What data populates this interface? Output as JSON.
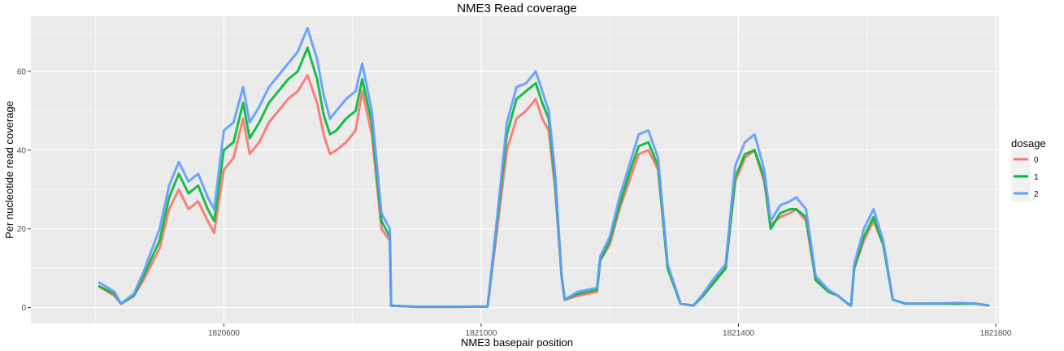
{
  "chart_data": {
    "type": "line",
    "title": "NME3 Read coverage",
    "xlabel": "NME3 basepair position",
    "ylabel": "Per nucleotide read coverage",
    "xlim": [
      1820300,
      1821805
    ],
    "ylim": [
      -4,
      74
    ],
    "x_ticks": [
      1820600,
      1821000,
      1821400,
      1821800
    ],
    "y_ticks": [
      0,
      20,
      40,
      60
    ],
    "grid": true,
    "legend": {
      "title": "dosage",
      "position": "right"
    },
    "colors": {
      "0": "#f8766d",
      "1": "#00ba38",
      "2": "#619cff",
      "panel": "#ebebeb",
      "grid": "#ffffff"
    },
    "series": [
      {
        "name": "0",
        "color": "#f8766d",
        "points": [
          [
            1820405,
            5.5
          ],
          [
            1820430,
            3
          ],
          [
            1820440,
            1
          ],
          [
            1820460,
            3
          ],
          [
            1820475,
            7
          ],
          [
            1820500,
            15
          ],
          [
            1820515,
            25
          ],
          [
            1820530,
            30
          ],
          [
            1820545,
            25
          ],
          [
            1820560,
            27
          ],
          [
            1820575,
            22
          ],
          [
            1820585,
            19
          ],
          [
            1820600,
            35
          ],
          [
            1820615,
            38
          ],
          [
            1820630,
            48
          ],
          [
            1820640,
            39
          ],
          [
            1820655,
            42
          ],
          [
            1820670,
            47
          ],
          [
            1820685,
            50
          ],
          [
            1820700,
            53
          ],
          [
            1820715,
            55
          ],
          [
            1820730,
            59
          ],
          [
            1820745,
            52
          ],
          [
            1820755,
            44
          ],
          [
            1820765,
            39
          ],
          [
            1820775,
            40
          ],
          [
            1820790,
            42
          ],
          [
            1820805,
            45
          ],
          [
            1820815,
            55
          ],
          [
            1820830,
            44
          ],
          [
            1820845,
            20
          ],
          [
            1820858,
            17
          ],
          [
            1820860,
            0.5
          ],
          [
            1820900,
            0.2
          ],
          [
            1820960,
            0.2
          ],
          [
            1821010,
            0.3
          ],
          [
            1821025,
            20
          ],
          [
            1821040,
            40
          ],
          [
            1821055,
            48
          ],
          [
            1821070,
            50
          ],
          [
            1821085,
            53
          ],
          [
            1821095,
            48
          ],
          [
            1821105,
            45
          ],
          [
            1821115,
            30
          ],
          [
            1821125,
            8
          ],
          [
            1821130,
            2
          ],
          [
            1821150,
            3
          ],
          [
            1821180,
            4
          ],
          [
            1821185,
            12
          ],
          [
            1821200,
            16
          ],
          [
            1821215,
            25
          ],
          [
            1821230,
            32
          ],
          [
            1821245,
            39
          ],
          [
            1821260,
            40
          ],
          [
            1821275,
            35
          ],
          [
            1821290,
            10
          ],
          [
            1821310,
            1
          ],
          [
            1821330,
            0.5
          ],
          [
            1821345,
            3
          ],
          [
            1821360,
            6
          ],
          [
            1821380,
            10
          ],
          [
            1821395,
            32
          ],
          [
            1821410,
            38
          ],
          [
            1821425,
            40
          ],
          [
            1821440,
            32
          ],
          [
            1821450,
            21
          ],
          [
            1821465,
            23
          ],
          [
            1821480,
            24
          ],
          [
            1821490,
            25
          ],
          [
            1821505,
            22
          ],
          [
            1821520,
            7
          ],
          [
            1821540,
            4
          ],
          [
            1821555,
            3
          ],
          [
            1821570,
            1
          ],
          [
            1821575,
            0.5
          ],
          [
            1821580,
            10
          ],
          [
            1821595,
            17
          ],
          [
            1821610,
            22
          ],
          [
            1821625,
            16
          ],
          [
            1821640,
            2
          ],
          [
            1821660,
            1
          ],
          [
            1821700,
            1
          ],
          [
            1821740,
            1
          ],
          [
            1821770,
            1
          ],
          [
            1821790,
            0.5
          ]
        ]
      },
      {
        "name": "1",
        "color": "#00ba38",
        "points": [
          [
            1820405,
            5.5
          ],
          [
            1820430,
            3.5
          ],
          [
            1820440,
            1
          ],
          [
            1820460,
            3
          ],
          [
            1820475,
            8
          ],
          [
            1820500,
            17
          ],
          [
            1820515,
            28
          ],
          [
            1820530,
            34
          ],
          [
            1820545,
            29
          ],
          [
            1820560,
            31
          ],
          [
            1820575,
            25
          ],
          [
            1820585,
            22
          ],
          [
            1820600,
            40
          ],
          [
            1820615,
            42
          ],
          [
            1820630,
            52
          ],
          [
            1820640,
            43
          ],
          [
            1820655,
            47
          ],
          [
            1820670,
            52
          ],
          [
            1820685,
            55
          ],
          [
            1820700,
            58
          ],
          [
            1820715,
            60
          ],
          [
            1820730,
            66
          ],
          [
            1820745,
            58
          ],
          [
            1820755,
            49
          ],
          [
            1820765,
            44
          ],
          [
            1820775,
            45
          ],
          [
            1820790,
            48
          ],
          [
            1820805,
            50
          ],
          [
            1820815,
            58
          ],
          [
            1820830,
            47
          ],
          [
            1820845,
            22
          ],
          [
            1820858,
            18
          ],
          [
            1820860,
            0.5
          ],
          [
            1820900,
            0.2
          ],
          [
            1820960,
            0.2
          ],
          [
            1821010,
            0.3
          ],
          [
            1821025,
            22
          ],
          [
            1821040,
            44
          ],
          [
            1821055,
            53
          ],
          [
            1821070,
            55
          ],
          [
            1821085,
            57
          ],
          [
            1821095,
            52
          ],
          [
            1821105,
            48
          ],
          [
            1821115,
            32
          ],
          [
            1821125,
            8
          ],
          [
            1821130,
            2
          ],
          [
            1821150,
            3.5
          ],
          [
            1821180,
            4.5
          ],
          [
            1821185,
            12
          ],
          [
            1821200,
            17
          ],
          [
            1821215,
            26
          ],
          [
            1821230,
            34
          ],
          [
            1821245,
            41
          ],
          [
            1821260,
            42
          ],
          [
            1821275,
            36
          ],
          [
            1821290,
            10
          ],
          [
            1821310,
            1
          ],
          [
            1821330,
            0.5
          ],
          [
            1821345,
            3
          ],
          [
            1821360,
            6
          ],
          [
            1821380,
            10
          ],
          [
            1821395,
            33
          ],
          [
            1821410,
            39
          ],
          [
            1821425,
            40
          ],
          [
            1821440,
            33
          ],
          [
            1821450,
            20
          ],
          [
            1821465,
            24
          ],
          [
            1821480,
            25
          ],
          [
            1821490,
            25
          ],
          [
            1821505,
            23
          ],
          [
            1821520,
            7
          ],
          [
            1821540,
            4
          ],
          [
            1821555,
            3
          ],
          [
            1821570,
            1
          ],
          [
            1821575,
            0.5
          ],
          [
            1821580,
            10
          ],
          [
            1821595,
            18
          ],
          [
            1821610,
            23
          ],
          [
            1821625,
            16
          ],
          [
            1821640,
            2
          ],
          [
            1821660,
            1
          ],
          [
            1821700,
            1
          ],
          [
            1821740,
            1
          ],
          [
            1821770,
            1
          ],
          [
            1821790,
            0.5
          ]
        ]
      },
      {
        "name": "2",
        "color": "#619cff",
        "points": [
          [
            1820405,
            6.5
          ],
          [
            1820430,
            4
          ],
          [
            1820440,
            1
          ],
          [
            1820460,
            3.5
          ],
          [
            1820475,
            9
          ],
          [
            1820500,
            20
          ],
          [
            1820515,
            31
          ],
          [
            1820530,
            37
          ],
          [
            1820545,
            32
          ],
          [
            1820560,
            34
          ],
          [
            1820575,
            28
          ],
          [
            1820585,
            25
          ],
          [
            1820600,
            45
          ],
          [
            1820615,
            47
          ],
          [
            1820630,
            56
          ],
          [
            1820640,
            47
          ],
          [
            1820655,
            51
          ],
          [
            1820670,
            56
          ],
          [
            1820685,
            59
          ],
          [
            1820700,
            62
          ],
          [
            1820715,
            65
          ],
          [
            1820730,
            71
          ],
          [
            1820745,
            63
          ],
          [
            1820755,
            54
          ],
          [
            1820765,
            48
          ],
          [
            1820775,
            50
          ],
          [
            1820790,
            53
          ],
          [
            1820805,
            55
          ],
          [
            1820815,
            62
          ],
          [
            1820830,
            50
          ],
          [
            1820845,
            24
          ],
          [
            1820858,
            20
          ],
          [
            1820860,
            0.5
          ],
          [
            1820900,
            0.2
          ],
          [
            1820960,
            0.2
          ],
          [
            1821010,
            0.3
          ],
          [
            1821025,
            23
          ],
          [
            1821040,
            47
          ],
          [
            1821055,
            56
          ],
          [
            1821070,
            57
          ],
          [
            1821085,
            60
          ],
          [
            1821095,
            55
          ],
          [
            1821105,
            50
          ],
          [
            1821115,
            34
          ],
          [
            1821125,
            8
          ],
          [
            1821130,
            2
          ],
          [
            1821150,
            4
          ],
          [
            1821180,
            5
          ],
          [
            1821185,
            13
          ],
          [
            1821200,
            18
          ],
          [
            1821215,
            28
          ],
          [
            1821230,
            36
          ],
          [
            1821245,
            44
          ],
          [
            1821260,
            45
          ],
          [
            1821275,
            38
          ],
          [
            1821290,
            11
          ],
          [
            1821310,
            1
          ],
          [
            1821330,
            0.5
          ],
          [
            1821345,
            3.5
          ],
          [
            1821360,
            7
          ],
          [
            1821380,
            11
          ],
          [
            1821395,
            36
          ],
          [
            1821410,
            42
          ],
          [
            1821425,
            44
          ],
          [
            1821440,
            35
          ],
          [
            1821450,
            22
          ],
          [
            1821465,
            26
          ],
          [
            1821480,
            27
          ],
          [
            1821490,
            28
          ],
          [
            1821505,
            25
          ],
          [
            1821520,
            8
          ],
          [
            1821540,
            4.5
          ],
          [
            1821555,
            3
          ],
          [
            1821570,
            1
          ],
          [
            1821575,
            0.5
          ],
          [
            1821580,
            11
          ],
          [
            1821595,
            20
          ],
          [
            1821610,
            25
          ],
          [
            1821625,
            17
          ],
          [
            1821640,
            2
          ],
          [
            1821660,
            1
          ],
          [
            1821700,
            1
          ],
          [
            1821740,
            1.2
          ],
          [
            1821770,
            1
          ],
          [
            1821790,
            0.5
          ]
        ]
      }
    ]
  }
}
